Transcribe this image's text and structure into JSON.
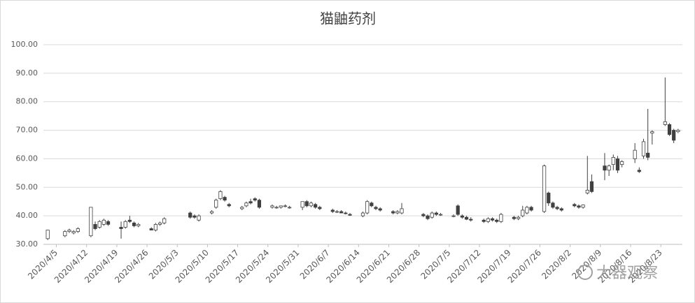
{
  "chart_data": {
    "type": "candlestick",
    "title": "猫鼬药剂",
    "watermark": "大器观察",
    "x": [
      "2020/4/3",
      "2020/4/7",
      "2020/4/8",
      "2020/4/9",
      "2020/4/10",
      "2020/4/13",
      "2020/4/14",
      "2020/4/15",
      "2020/4/16",
      "2020/4/17",
      "2020/4/20",
      "2020/4/21",
      "2020/4/22",
      "2020/4/23",
      "2020/4/24",
      "2020/4/27",
      "2020/4/28",
      "2020/4/29",
      "2020/4/30",
      "2020/5/6",
      "2020/5/7",
      "2020/5/8",
      "2020/5/11",
      "2020/5/12",
      "2020/5/13",
      "2020/5/14",
      "2020/5/15",
      "2020/5/18",
      "2020/5/19",
      "2020/5/20",
      "2020/5/21",
      "2020/5/22",
      "2020/5/25",
      "2020/5/26",
      "2020/5/27",
      "2020/5/28",
      "2020/5/29",
      "2020/6/1",
      "2020/6/2",
      "2020/6/3",
      "2020/6/4",
      "2020/6/5",
      "2020/6/8",
      "2020/6/9",
      "2020/6/10",
      "2020/6/11",
      "2020/6/12",
      "2020/6/15",
      "2020/6/16",
      "2020/6/17",
      "2020/6/18",
      "2020/6/19",
      "2020/6/22",
      "2020/6/23",
      "2020/6/24",
      "2020/6/29",
      "2020/6/30",
      "2020/7/1",
      "2020/7/2",
      "2020/7/3",
      "2020/7/6",
      "2020/7/7",
      "2020/7/8",
      "2020/7/9",
      "2020/7/10",
      "2020/7/13",
      "2020/7/14",
      "2020/7/15",
      "2020/7/16",
      "2020/7/17",
      "2020/7/20",
      "2020/7/21",
      "2020/7/22",
      "2020/7/23",
      "2020/7/24",
      "2020/7/27",
      "2020/7/28",
      "2020/7/29",
      "2020/7/30",
      "2020/7/31",
      "2020/8/3",
      "2020/8/4",
      "2020/8/5",
      "2020/8/6",
      "2020/8/7",
      "2020/8/10",
      "2020/8/11",
      "2020/8/12",
      "2020/8/13",
      "2020/8/14",
      "2020/8/17",
      "2020/8/18",
      "2020/8/19",
      "2020/8/20",
      "2020/8/21",
      "2020/8/24",
      "2020/8/25",
      "2020/8/26",
      "2020/8/27"
    ],
    "open": [
      32,
      33,
      34.5,
      34,
      34.5,
      33,
      37,
      36,
      37,
      38,
      36,
      36,
      38.5,
      37.5,
      36.5,
      35.5,
      35,
      37,
      37.5,
      41,
      40,
      38.5,
      41,
      43,
      46,
      46.5,
      44,
      42.5,
      43.5,
      45,
      46,
      45.5,
      43,
      43,
      43,
      43.5,
      43,
      43,
      45,
      43.5,
      44,
      43,
      42,
      41.5,
      41.5,
      41,
      40.5,
      40,
      41,
      44.5,
      43,
      42.5,
      41.5,
      41,
      41,
      40.5,
      40,
      39.5,
      41,
      40.5,
      40,
      43.5,
      40,
      39.5,
      38.8,
      38.5,
      38,
      39,
      38.5,
      38,
      39.5,
      39,
      40,
      41,
      43,
      41.5,
      48,
      44.5,
      43,
      42.5,
      44,
      43.5,
      43,
      48,
      52,
      57.5,
      56,
      58,
      60,
      58,
      60,
      56,
      61,
      62,
      69,
      72,
      72,
      70,
      69.5
    ],
    "high": [
      35,
      35,
      35.5,
      35,
      36,
      43,
      38,
      38.5,
      39,
      38.5,
      38,
      38.5,
      40,
      38,
      37.5,
      36,
      37.5,
      38,
      39.5,
      41.5,
      40.5,
      40.5,
      42,
      46,
      49,
      47,
      44.5,
      43.5,
      45,
      46,
      46.5,
      46,
      44,
      43.5,
      43.5,
      44,
      43.5,
      45,
      45.5,
      45,
      44.5,
      43.5,
      42.5,
      42,
      42,
      41.5,
      41,
      41.5,
      45.5,
      45,
      43.5,
      43,
      42,
      42,
      44.5,
      41,
      40.5,
      41.5,
      41.5,
      41,
      40.5,
      44,
      40.5,
      40,
      39.5,
      39,
      39.5,
      39.5,
      39,
      41,
      40,
      40,
      43.5,
      43.5,
      43.5,
      58,
      48.5,
      45,
      43.5,
      43,
      44.5,
      44,
      44,
      61,
      54.5,
      62,
      58,
      61.5,
      61,
      59.5,
      65.5,
      57,
      67,
      77.5,
      70,
      88.5,
      72.5,
      70.5,
      70.5
    ],
    "low": [
      31.5,
      32.5,
      34,
      33.5,
      34,
      32.5,
      35,
      35.5,
      36.5,
      36.5,
      32,
      35.5,
      37.5,
      36,
      36,
      35,
      34.5,
      36.5,
      37,
      39,
      39,
      38,
      40.5,
      42.5,
      45.5,
      45,
      43,
      42,
      43,
      44,
      45,
      42.5,
      42.5,
      42.5,
      42.5,
      43,
      42.5,
      42,
      43,
      43,
      42.5,
      42,
      41,
      41,
      41,
      40.5,
      40,
      39.5,
      40.5,
      43,
      42,
      41.5,
      40.5,
      40.5,
      40.5,
      39.5,
      38.5,
      39,
      40,
      40,
      39.5,
      40,
      39,
      38.5,
      38,
      37.5,
      37.5,
      38,
      37.5,
      37.5,
      38.5,
      38.5,
      39.5,
      40.5,
      41.5,
      41,
      43.5,
      42.5,
      42,
      41.5,
      43,
      42.5,
      42.5,
      47.5,
      48,
      52.5,
      54,
      56,
      55,
      57,
      58.5,
      55,
      60,
      59.5,
      65,
      71.5,
      68,
      65.5,
      69
    ],
    "close": [
      35,
      34.5,
      35,
      34.5,
      35.5,
      43,
      35.5,
      38,
      38.5,
      37,
      35.5,
      38,
      38,
      36.5,
      37,
      35,
      37,
      37.5,
      39,
      39.5,
      39.5,
      40,
      41.5,
      45.5,
      48.5,
      45.5,
      43.5,
      43,
      44.5,
      44.5,
      45.5,
      43,
      43.5,
      43,
      43.5,
      43.5,
      43,
      45,
      43.5,
      44.5,
      43,
      42.5,
      41.5,
      41.5,
      41,
      40.8,
      40.2,
      41,
      45,
      43.5,
      42.5,
      42,
      41,
      41.5,
      42.5,
      40,
      39,
      41,
      40.5,
      40.5,
      40,
      40.5,
      39.5,
      38.8,
      38.5,
      38,
      39,
      38.5,
      38,
      40.5,
      39,
      39.5,
      42,
      43,
      42,
      57.5,
      44.5,
      43,
      42.5,
      42,
      43.5,
      43,
      43.8,
      49,
      48.5,
      56,
      57.5,
      60.5,
      56,
      59,
      63,
      55.5,
      66,
      60.5,
      69.5,
      73,
      68.5,
      66.5,
      70
    ],
    "xlim": [
      "2020/4/2",
      "2020/8/28"
    ],
    "xticks": [
      "2020/4/5",
      "2020/4/12",
      "2020/4/19",
      "2020/4/26",
      "2020/5/3",
      "2020/5/10",
      "2020/5/17",
      "2020/5/24",
      "2020/5/31",
      "2020/6/7",
      "2020/6/14",
      "2020/6/21",
      "2020/6/28",
      "2020/7/5",
      "2020/7/12",
      "2020/7/19",
      "2020/7/26",
      "2020/8/2",
      "2020/8/9",
      "2020/8/16",
      "2020/8/23"
    ],
    "ylim": [
      30,
      100
    ],
    "yticks": [
      {
        "value": 30,
        "label": "30.00"
      },
      {
        "value": 40,
        "label": "40.00"
      },
      {
        "value": 50,
        "label": "50.00"
      },
      {
        "value": 60,
        "label": "60.00"
      },
      {
        "value": 70,
        "label": "70.00"
      },
      {
        "value": 80,
        "label": "80.00"
      },
      {
        "value": 90,
        "label": "90.00"
      },
      {
        "value": 100,
        "label": "100.00"
      }
    ],
    "grid": true,
    "up_color": "#ffffff",
    "down_color": "#404040",
    "line_color": "#404040"
  }
}
